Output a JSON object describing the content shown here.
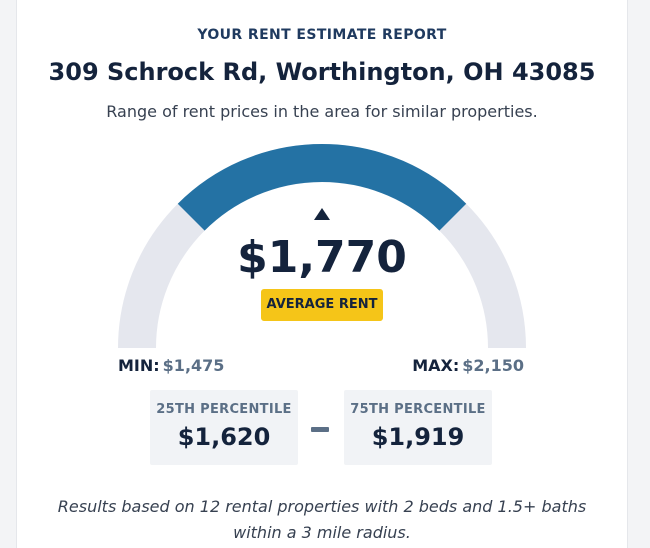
{
  "report": {
    "eyebrow": "YOUR RENT ESTIMATE REPORT",
    "address": "309 Schrock Rd, Worthington, OH 43085",
    "subtitle": "Range of rent prices in the area for similar properties."
  },
  "gauge": {
    "average_value": "$1,770",
    "average_label": "AVERAGE RENT",
    "min_label": "MIN:",
    "min_value": "$1,475",
    "max_label": "MAX:",
    "max_value": "$2,150"
  },
  "percentiles": {
    "p25_label": "25TH PERCENTILE",
    "p25_value": "$1,620",
    "p75_label": "75TH PERCENTILE",
    "p75_value": "$1,919"
  },
  "footnote": {
    "line1": "Results based on 12 rental properties with 2 beds and 1.5+ baths",
    "line2": "within a 3 mile radius."
  },
  "colors": {
    "gauge_track": "#e5e7ee",
    "gauge_range": "#2472a4",
    "badge": "#f5c518",
    "text_dark": "#14233c"
  }
}
